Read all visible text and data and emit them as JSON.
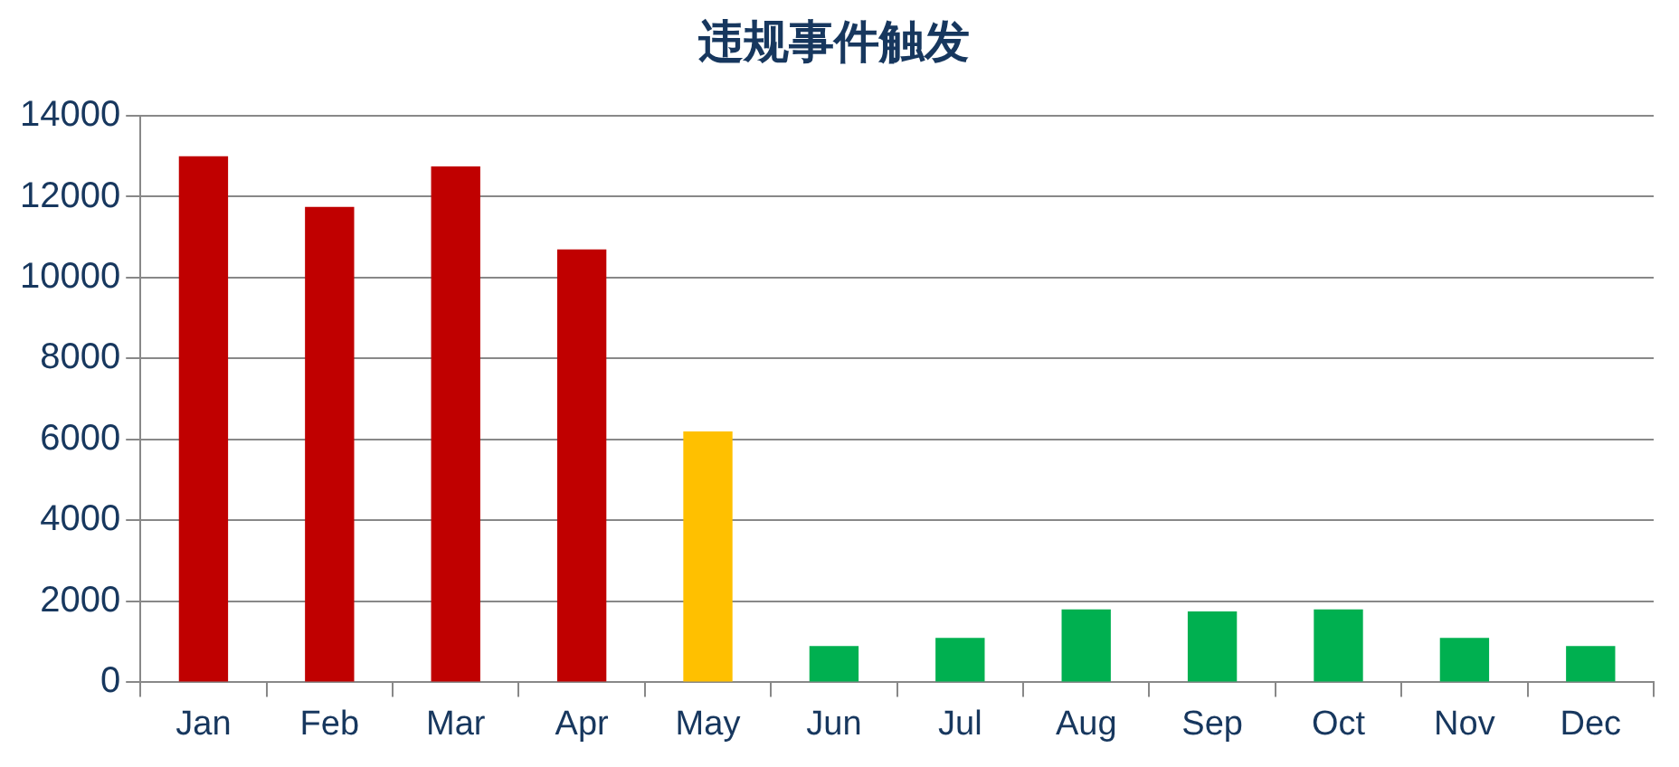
{
  "chart_data": {
    "type": "bar",
    "title": "违规事件触发",
    "categories": [
      "Jan",
      "Feb",
      "Mar",
      "Apr",
      "May",
      "Jun",
      "Jul",
      "Aug",
      "Sep",
      "Oct",
      "Nov",
      "Dec"
    ],
    "values": [
      13000,
      11750,
      12750,
      10700,
      6200,
      900,
      1100,
      1800,
      1750,
      1800,
      1100,
      900
    ],
    "colors": [
      "#c00000",
      "#c00000",
      "#c00000",
      "#c00000",
      "#ffc000",
      "#00b050",
      "#00b050",
      "#00b050",
      "#00b050",
      "#00b050",
      "#00b050",
      "#00b050"
    ],
    "ylim": [
      0,
      14000
    ],
    "yticks": [
      0,
      2000,
      4000,
      6000,
      8000,
      10000,
      12000,
      14000
    ],
    "grid": "y"
  }
}
